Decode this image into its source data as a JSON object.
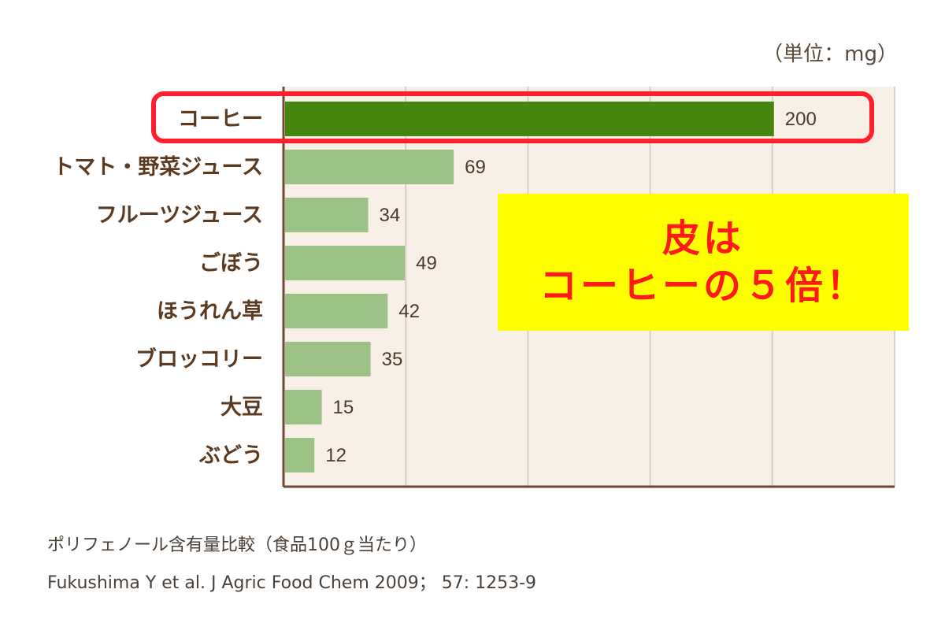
{
  "unit_label": "（単位：mg）",
  "caption": {
    "line1": "ポリフェノール含有量比較（食品100ｇ当たり）",
    "line2": "Fukushima Y et al. J Agric Food Chem 2009； 57: 1253-9"
  },
  "callout": {
    "line1": "皮は",
    "line2": "コーヒーの５倍！"
  },
  "colors": {
    "highlight_bar": "#458510",
    "bar": "#9cc286",
    "plot_bg": "#f8efe6",
    "axis": "#6b4a33",
    "grid": "#d9cfc4",
    "category_text": "#5a3b22",
    "value_text": "#4a3a2a"
  },
  "chart_data": {
    "type": "bar",
    "orientation": "horizontal",
    "categories": [
      "コーヒー",
      "トマト・野菜ジュース",
      "フルーツジュース",
      "ごぼう",
      "ほうれん草",
      "ブロッコリー",
      "大豆",
      "ぶどう"
    ],
    "values": [
      200,
      69,
      34,
      49,
      42,
      35,
      15,
      12
    ],
    "highlight_index": 0,
    "xlim": [
      0,
      250
    ],
    "gridlines": [
      50,
      100,
      150,
      200,
      250
    ]
  }
}
